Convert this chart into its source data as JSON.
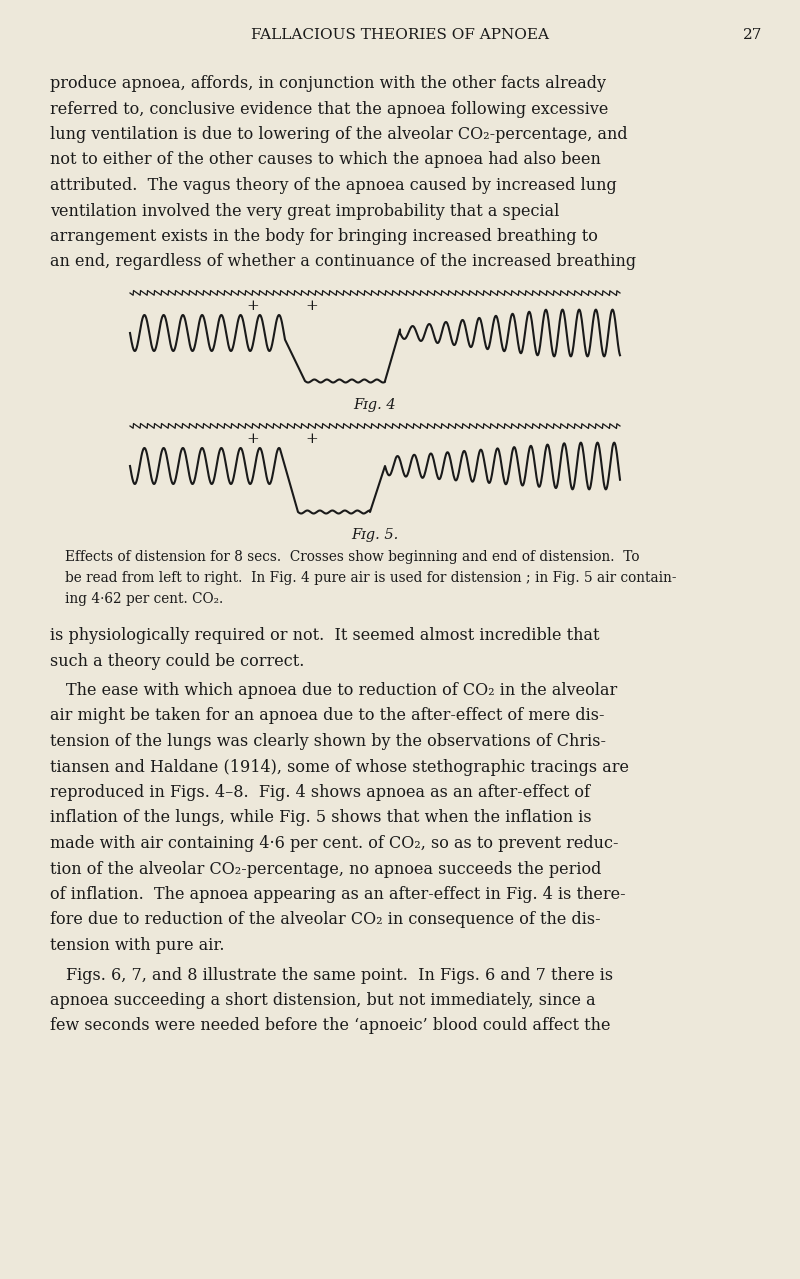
{
  "bg_color": "#ede8da",
  "text_color": "#1a1a1a",
  "page_width": 8.0,
  "page_height": 12.79,
  "title": "FALLACIOUS THEORIES OF APNOEA",
  "page_number": "27",
  "para1_lines": [
    "produce apnoea, affords, in conjunction with the other facts already",
    "referred to, conclusive evidence that the apnoea following excessive",
    "lung ventilation is due to lowering of the alveolar CO₂-percentage, and",
    "not to either of the other causes to which the apnoea had also been",
    "attributed.  The vagus theory of the apnoea caused by increased lung",
    "ventilation involved the very great improbability that a special",
    "arrangement exists in the body for bringing increased breathing to",
    "an end, regardless of whether a continuance of the increased breathing"
  ],
  "fig4_label": "Fɪg. 4",
  "fig5_label": "Fɪg. 5.",
  "caption_lines": [
    "Effects of distension for 8 secs.  Crosses show beginning and end of distension.  To",
    "be read from left to right.  In Fig. 4 pure air is used for distension ; in Fig. 5 air contain-",
    "ing 4·62 per cent. CO₂."
  ],
  "para2_lines": [
    "is physiologically required or not.  It seemed almost incredible that",
    "such a theory could be correct."
  ],
  "para3_lines": [
    " The ease with which apnoea due to reduction of CO₂ in the alveolar",
    "air might be taken for an apnoea due to the after-effect of mere dis-",
    "tension of the lungs was clearly shown by the observations of Chris-",
    "tiansen and Haldane (1914), some of whose stethographic tracings are",
    "reproduced in Figs. 4–8.  Fig. 4 shows apnoea as an after-effect of",
    "inflation of the lungs, while Fig. 5 shows that when the inflation is",
    "made with air containing 4·6 per cent. of CO₂, so as to prevent reduc-",
    "tion of the alveolar CO₂-percentage, no apnoea succeeds the period",
    "of inflation.  The apnoea appearing as an after-effect in Fig. 4 is there-",
    "fore due to reduction of the alveolar CO₂ in consequence of the dis-",
    "tension with pure air."
  ],
  "para4_lines": [
    " Figs. 6, 7, and 8 illustrate the same point.  In Figs. 6 and 7 there is",
    "apnoea succeeding a short distension, but not immediately, since a",
    "few seconds were needed before the ‘apnoeic’ blood could affect the"
  ]
}
